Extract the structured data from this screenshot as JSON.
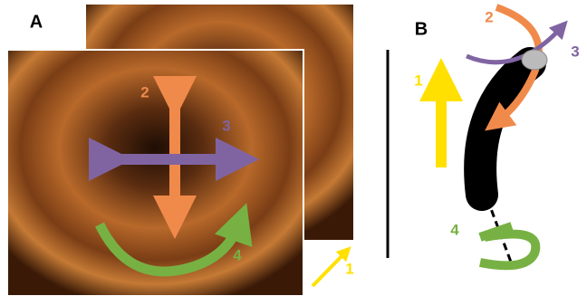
{
  "panel_a": {
    "label": "A",
    "arrows": [
      "1",
      "2",
      "3",
      "4"
    ]
  },
  "panel_b": {
    "label": "B",
    "arrows": [
      "1",
      "2",
      "3",
      "4"
    ]
  }
}
